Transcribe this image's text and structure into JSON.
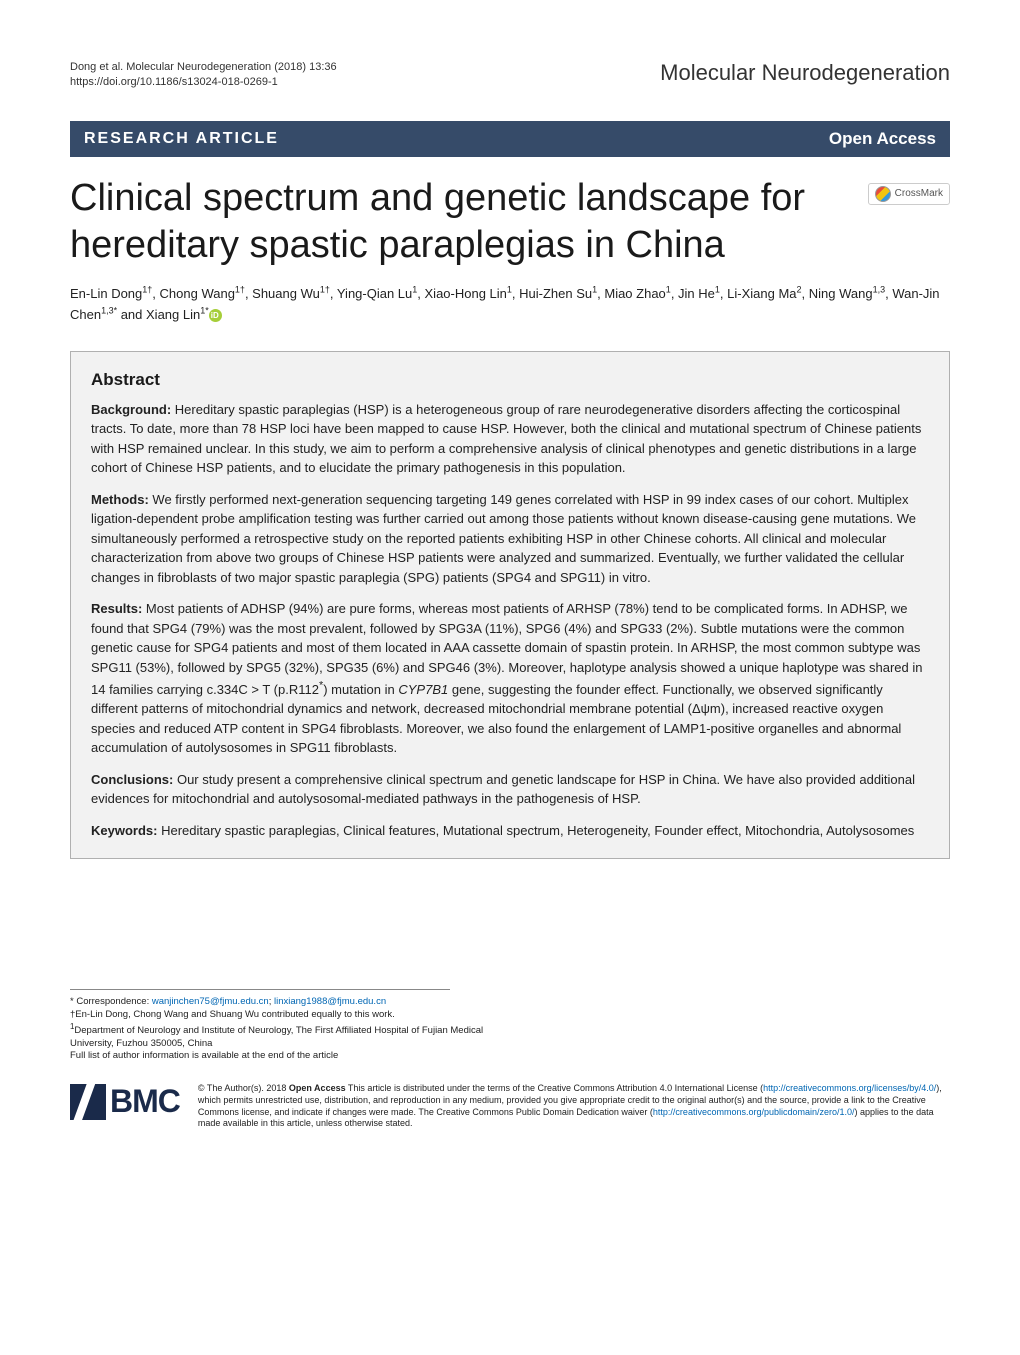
{
  "header": {
    "citation_line1": "Dong et al. Molecular Neurodegeneration  (2018) 13:36",
    "citation_line2": "https://doi.org/10.1186/s13024-018-0269-1",
    "journal": "Molecular Neurodegeneration"
  },
  "banner": {
    "article_type": "RESEARCH ARTICLE",
    "access": "Open Access"
  },
  "title": "Clinical spectrum and genetic landscape for hereditary spastic paraplegias in China",
  "crossmark_label": "CrossMark",
  "authors_html": "En-Lin Dong<sup>1†</sup>, Chong Wang<sup>1†</sup>, Shuang Wu<sup>1†</sup>, Ying-Qian Lu<sup>1</sup>, Xiao-Hong Lin<sup>1</sup>, Hui-Zhen Su<sup>1</sup>, Miao Zhao<sup>1</sup>, Jin He<sup>1</sup>, Li-Xiang Ma<sup>2</sup>, Ning Wang<sup>1,3</sup>, Wan-Jin Chen<sup>1,3*</sup> and Xiang Lin<sup>1*</sup>",
  "abstract": {
    "heading": "Abstract",
    "background_label": "Background:",
    "background": "Hereditary spastic paraplegias (HSP) is a heterogeneous group of rare neurodegenerative disorders affecting the corticospinal tracts. To date, more than 78 HSP loci have been mapped to cause HSP. However, both the clinical and mutational spectrum of Chinese patients with HSP remained unclear. In this study, we aim to perform a comprehensive analysis of clinical phenotypes and genetic distributions in a large cohort of Chinese HSP patients, and to elucidate the primary pathogenesis in this population.",
    "methods_label": "Methods:",
    "methods": "We firstly performed next-generation sequencing targeting 149 genes correlated with HSP in 99 index cases of our cohort. Multiplex ligation-dependent probe amplification testing was further carried out among those patients without known disease-causing gene mutations. We simultaneously performed a retrospective study on the reported patients exhibiting HSP in other Chinese cohorts. All clinical and molecular characterization from above two groups of Chinese HSP patients were analyzed and summarized. Eventually, we further validated the cellular changes in fibroblasts of two major spastic paraplegia (SPG) patients (SPG4 and SPG11) in vitro.",
    "results_label": "Results:",
    "results": "Most patients of ADHSP (94%) are pure forms, whereas most patients of ARHSP (78%) tend to be complicated forms. In ADHSP, we found that SPG4 (79%) was the most prevalent, followed by SPG3A (11%), SPG6 (4%) and SPG33 (2%). Subtle mutations were the common genetic cause for SPG4 patients and most of them located in AAA cassette domain of spastin protein. In ARHSP, the most common subtype was SPG11 (53%), followed by SPG5 (32%), SPG35 (6%) and SPG46 (3%). Moreover, haplotype analysis showed a unique haplotype was shared in 14 families carrying c.334C > T (p.R112*) mutation in CYP7B1 gene, suggesting the founder effect. Functionally, we observed significantly different patterns of mitochondrial dynamics and network, decreased mitochondrial membrane potential (Δψm), increased reactive oxygen species and reduced ATP content in SPG4 fibroblasts. Moreover, we also found the enlargement of LAMP1-positive organelles and abnormal accumulation of autolysosomes in SPG11 fibroblasts.",
    "conclusions_label": "Conclusions:",
    "conclusions": "Our study present a comprehensive clinical spectrum and genetic landscape for HSP in China. We have also provided additional evidences for mitochondrial and autolysosomal-mediated pathways in the pathogenesis of HSP.",
    "keywords_label": "Keywords:",
    "keywords": "Hereditary spastic paraplegias, Clinical features, Mutational spectrum, Heterogeneity, Founder effect, Mitochondria, Autolysosomes"
  },
  "footer": {
    "correspondence_label": "* Correspondence: ",
    "email1": "wanjinchen75@fjmu.edu.cn",
    "email_sep": "; ",
    "email2": "linxiang1988@fjmu.edu.cn",
    "contrib_note": "†En-Lin Dong, Chong Wang and Shuang Wu contributed equally to this work.",
    "affil1": "1Department of Neurology and Institute of Neurology, The First Affiliated Hospital of Fujian Medical University, Fuzhou 350005, China",
    "full_list": "Full list of author information is available at the end of the article"
  },
  "bmc_text": "BMC",
  "license": {
    "prefix": "© The Author(s). 2018 ",
    "bold": "Open Access",
    "body1": " This article is distributed under the terms of the Creative Commons Attribution 4.0 International License (",
    "link1": "http://creativecommons.org/licenses/by/4.0/",
    "body2": "), which permits unrestricted use, distribution, and reproduction in any medium, provided you give appropriate credit to the original author(s) and the source, provide a link to the Creative Commons license, and indicate if changes were made. The Creative Commons Public Domain Dedication waiver (",
    "link2": "http://creativecommons.org/publicdomain/zero/1.0/",
    "body3": ") applies to the data made available in this article, unless otherwise stated."
  },
  "colors": {
    "banner_bg": "#364b69",
    "abstract_bg": "#f2f2f2",
    "abstract_border": "#b0b0b0",
    "link": "#0066b3",
    "bmc": "#1a2a4a",
    "orcid": "#a6ce39"
  }
}
